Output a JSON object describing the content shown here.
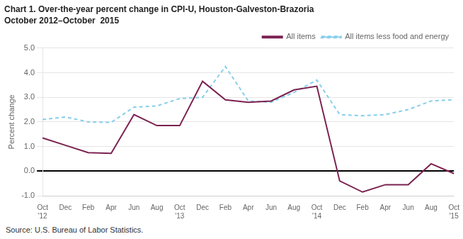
{
  "chart_data": {
    "type": "line",
    "title": "Chart 1. Over-the-year percent change in CPI-U, Houston-Galveston-Brazoria",
    "subtitle": "October 2012–October  2015",
    "y_label": "Percent change",
    "annotations": [
      "Source: U.S. Bureau of Labor Statistics."
    ],
    "categories": [
      "Oct\n'12",
      "Dec",
      "Feb",
      "Apr",
      "Jun",
      "Aug",
      "Oct\n'13",
      "Dec",
      "Feb",
      "Apr",
      "Jun",
      "Aug",
      "Oct\n'14",
      "Dec",
      "Feb",
      "Apr",
      "Jun",
      "Aug",
      "Oct\n'15"
    ],
    "series": [
      {
        "name": "All items",
        "color": "#7B2150",
        "line_style": "solid",
        "values": [
          1.35,
          1.05,
          0.75,
          0.72,
          2.3,
          1.85,
          1.85,
          3.65,
          2.9,
          2.8,
          2.85,
          3.3,
          3.45,
          -0.4,
          -0.85,
          -0.55,
          -0.55,
          0.3,
          -0.1
        ]
      },
      {
        "name": "All items less food and energy",
        "color": "#87CEEB",
        "line_style": "dashed",
        "values": [
          2.1,
          2.2,
          2.0,
          1.98,
          2.6,
          2.65,
          2.95,
          3.0,
          4.25,
          2.85,
          2.8,
          3.2,
          3.7,
          2.3,
          2.25,
          2.3,
          2.5,
          2.85,
          2.9
        ]
      }
    ],
    "ylim": [
      -1.0,
      5.0
    ],
    "yticks": [
      {
        "value": -1.0,
        "label": "-1.0"
      },
      {
        "value": 0.0,
        "label": "0.0"
      },
      {
        "value": 1.0,
        "label": "1.0"
      },
      {
        "value": 2.0,
        "label": "2.0"
      },
      {
        "value": 3.0,
        "label": "3.0"
      },
      {
        "value": 4.0,
        "label": "4.0"
      },
      {
        "value": 5.0,
        "label": "5.0"
      }
    ],
    "grid": "y",
    "legend": "upper right"
  }
}
